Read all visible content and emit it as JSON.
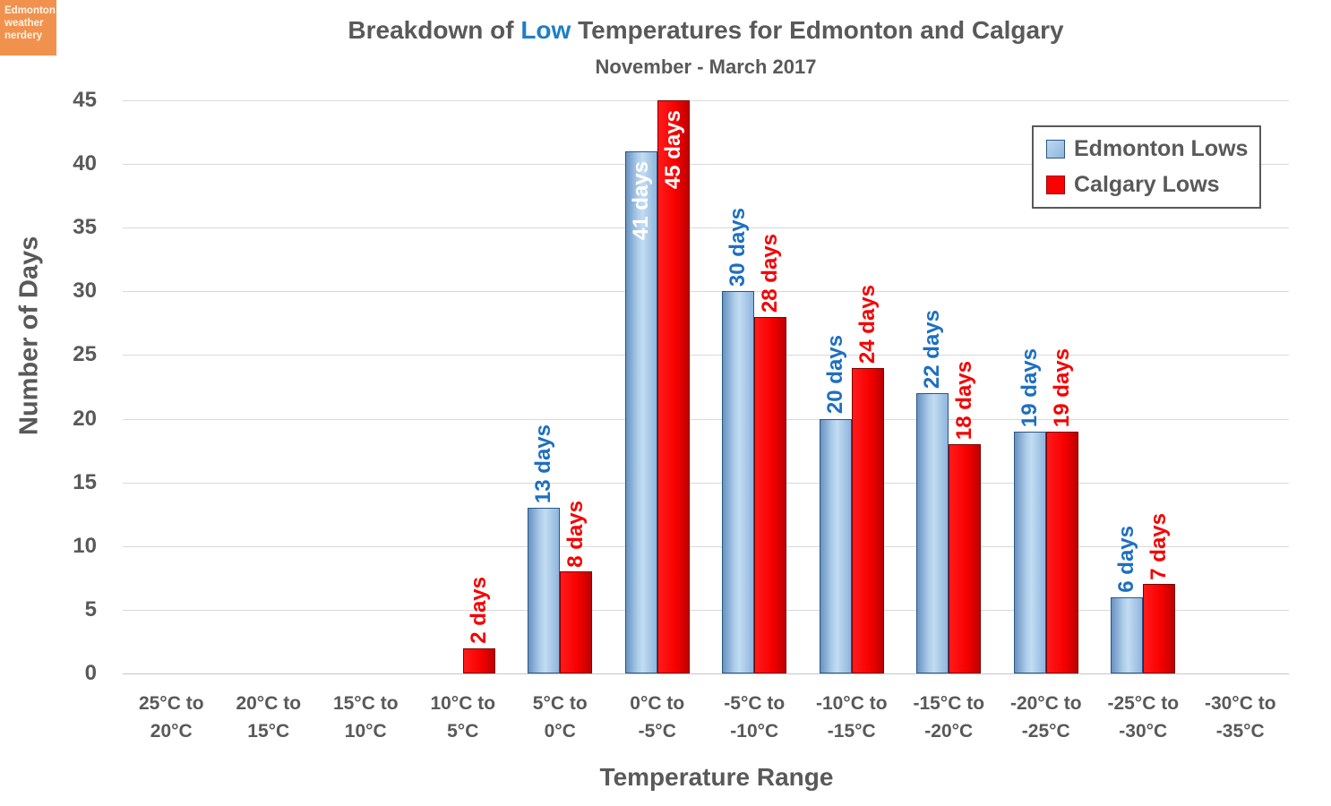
{
  "logo": {
    "lines": [
      "Edmonton",
      "weather",
      "nerdery"
    ],
    "bg_color": "#F0924E"
  },
  "title": {
    "prefix": "Breakdown of ",
    "highlight": "Low",
    "suffix": " Temperatures for Edmonton and Calgary",
    "highlight_color": "#1F7EC4"
  },
  "subtitle": "November - March 2017",
  "chart_data": {
    "type": "bar",
    "title": "Breakdown of Low Temperatures for Edmonton and Calgary",
    "subtitle": "November - March 2017",
    "xlabel": "Temperature Range",
    "ylabel": "Number of Days",
    "ylim": [
      0,
      45
    ],
    "yticks": [
      0,
      5,
      10,
      15,
      20,
      25,
      30,
      35,
      40,
      45
    ],
    "grid": "horizontal",
    "legend_position": "top-right",
    "value_suffix": " days",
    "label_inside_min": 40,
    "categories": [
      "25°C to 20°C",
      "20°C to 15°C",
      "15°C to 10°C",
      "10°C to 5°C",
      "5°C to 0°C",
      "0°C to -5°C",
      "-5°C to -10°C",
      "-10°C to -15°C",
      "-15°C to -20°C",
      "-20°C to -25°C",
      "-25°C to -30°C",
      "-30°C to -35°C"
    ],
    "series": [
      {
        "name": "Edmonton Lows",
        "key": "edmonton",
        "values": [
          0,
          0,
          0,
          0,
          13,
          41,
          30,
          20,
          22,
          19,
          6,
          0
        ]
      },
      {
        "name": "Calgary Lows",
        "key": "calgary",
        "values": [
          0,
          0,
          0,
          2,
          8,
          45,
          28,
          24,
          18,
          19,
          7,
          0
        ]
      }
    ],
    "legend": [
      {
        "label": "Edmonton Lows"
      },
      {
        "label": "Calgary Lows"
      }
    ],
    "colors": {
      "edmonton_fill": "#9DC3E6",
      "edmonton_border": "#2A5784",
      "edmonton_label": "#1C6FC1",
      "calgary_fill": "#F80000",
      "calgary_border": "#7E0000",
      "calgary_label": "#F50000",
      "text": "#595959",
      "grid": "#D9D9D9"
    }
  }
}
